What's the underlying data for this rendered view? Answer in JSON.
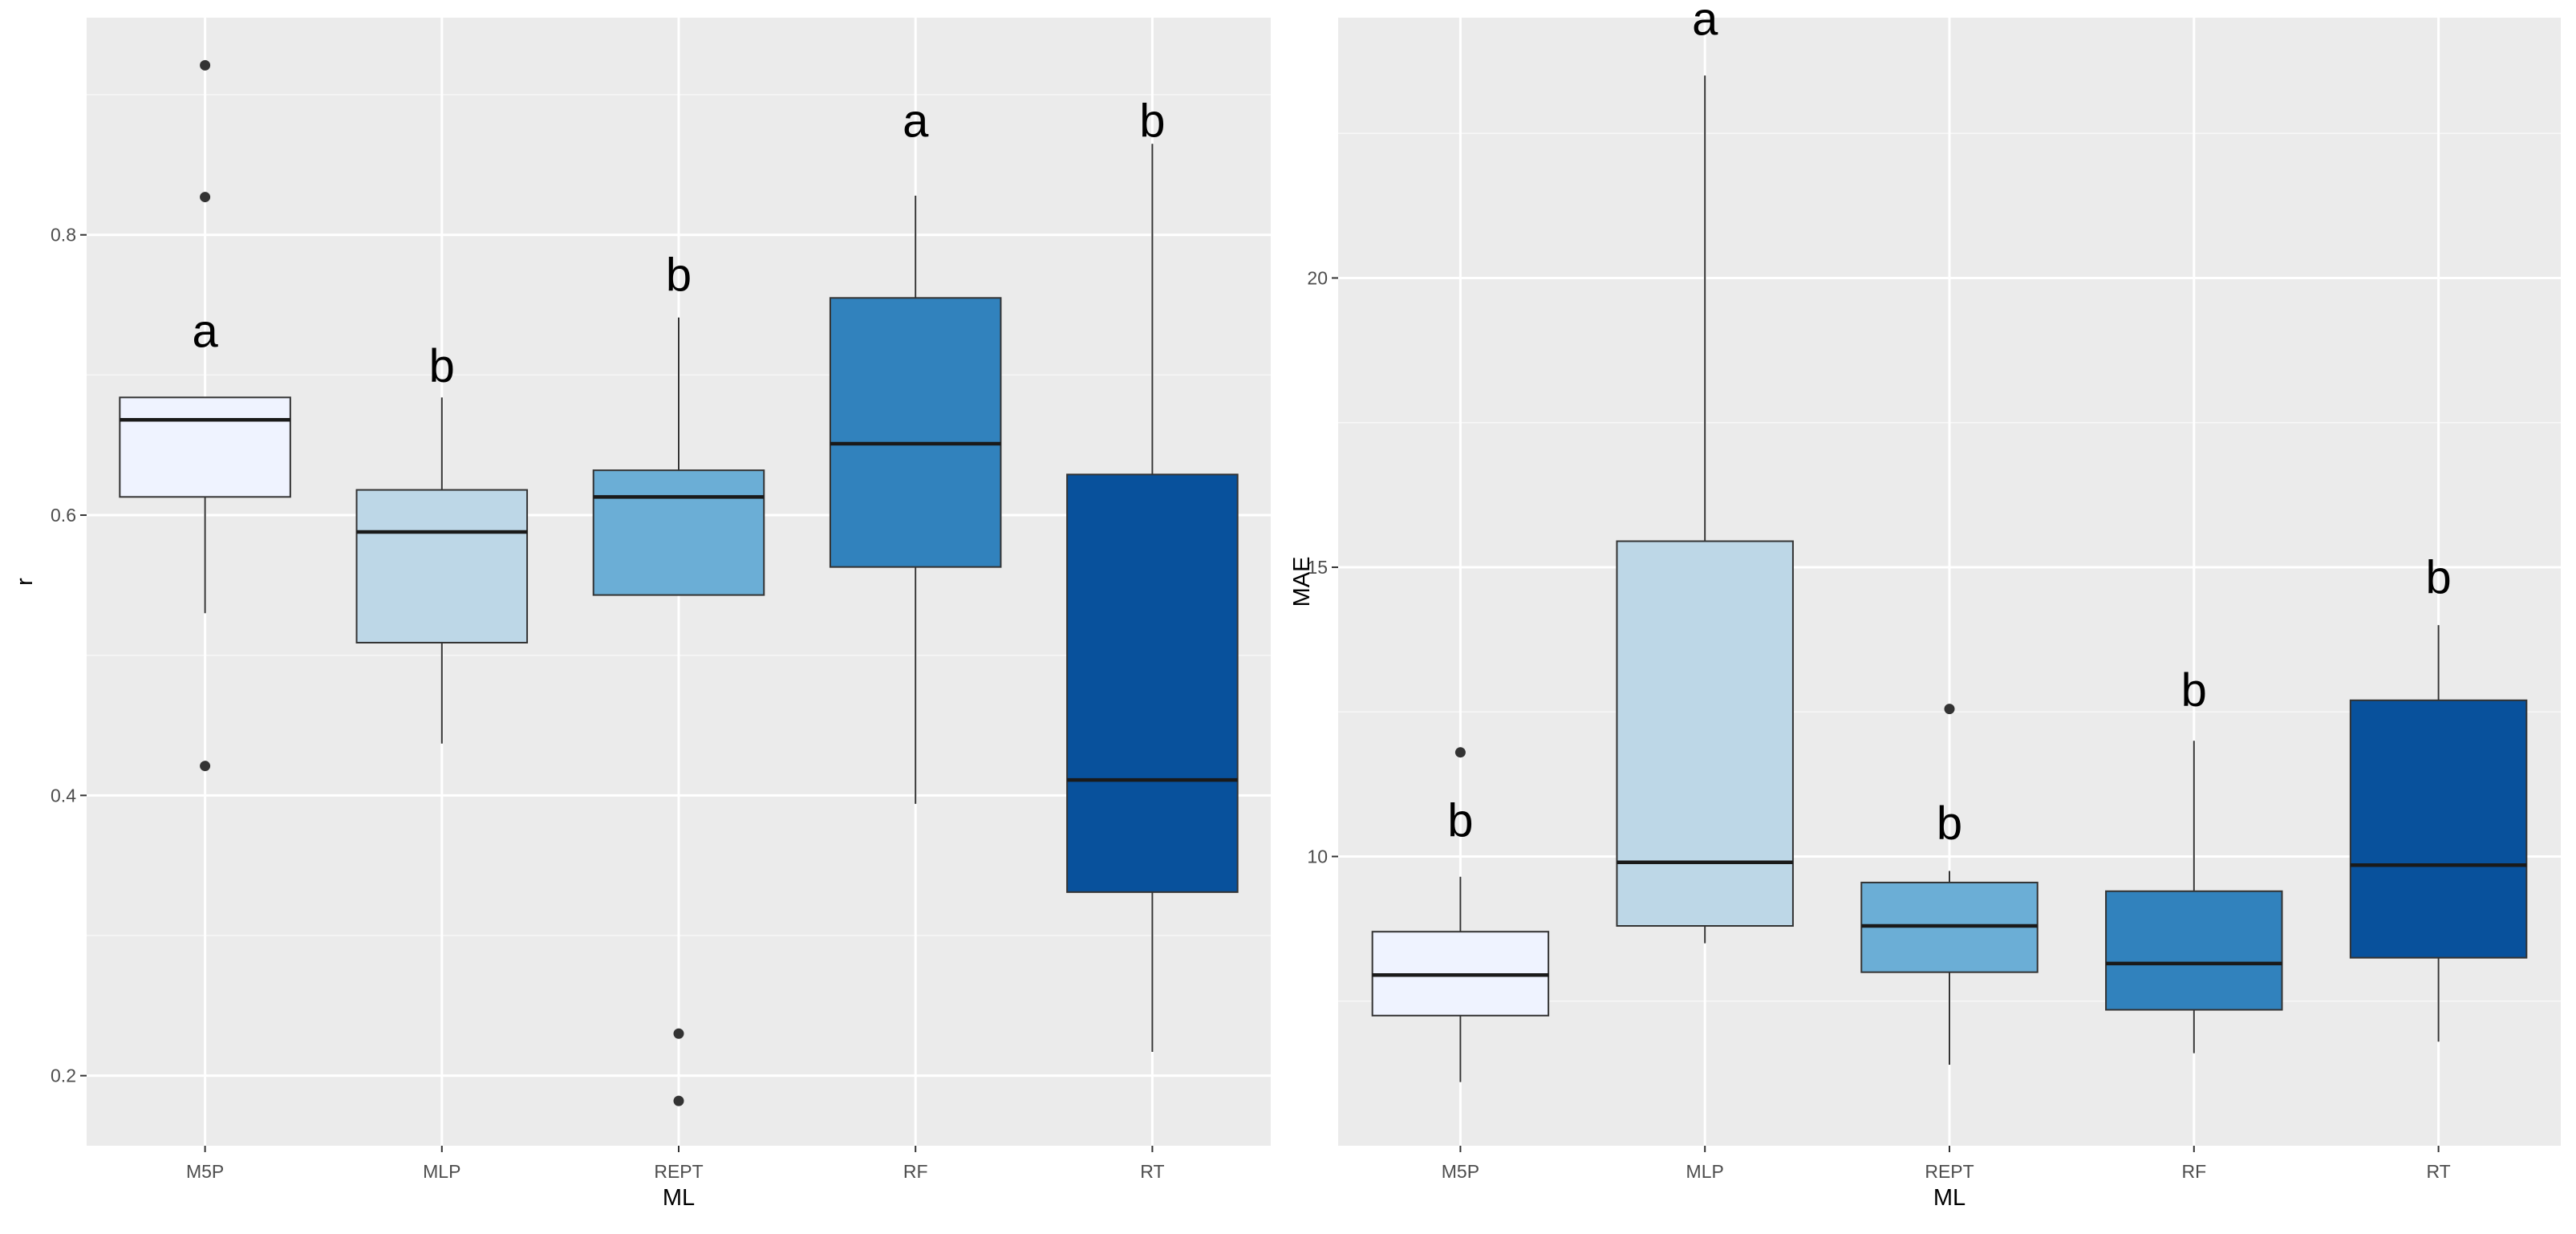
{
  "chart_data": [
    {
      "type": "box",
      "xlabel": "ML",
      "ylabel": "r",
      "ylim": [
        0.15,
        0.955
      ],
      "yticks": [
        "0.2",
        "0.4",
        "0.6",
        "0.8"
      ],
      "categories": [
        "M5P",
        "MLP",
        "REPT",
        "RF",
        "RT"
      ],
      "colors": [
        "#EFF3FF",
        "#BDD7E7",
        "#6BAED6",
        "#3182BD",
        "#08519C"
      ],
      "boxes": [
        {
          "category": "M5P",
          "whisker_low": 0.53,
          "q1": 0.613,
          "median": 0.668,
          "q3": 0.684,
          "whisker_high": 0.684,
          "outliers": [
            0.921,
            0.827,
            0.421
          ],
          "letter": "a",
          "letter_y": 0.72
        },
        {
          "category": "MLP",
          "whisker_low": 0.437,
          "q1": 0.509,
          "median": 0.588,
          "q3": 0.618,
          "whisker_high": 0.684,
          "outliers": [],
          "letter": "b",
          "letter_y": 0.695
        },
        {
          "category": "REPT",
          "whisker_low": 0.543,
          "q1": 0.543,
          "median": 0.613,
          "q3": 0.632,
          "whisker_high": 0.741,
          "outliers": [
            0.23,
            0.182
          ],
          "letter": "b",
          "letter_y": 0.76
        },
        {
          "category": "RF",
          "whisker_low": 0.394,
          "q1": 0.563,
          "median": 0.651,
          "q3": 0.755,
          "whisker_high": 0.828,
          "outliers": [],
          "letter": "a",
          "letter_y": 0.87
        },
        {
          "category": "RT",
          "whisker_low": 0.217,
          "q1": 0.331,
          "median": 0.411,
          "q3": 0.629,
          "whisker_high": 0.865,
          "outliers": [],
          "letter": "b",
          "letter_y": 0.87
        }
      ]
    },
    {
      "type": "box",
      "xlabel": "ML",
      "ylabel": "MAE",
      "ylim": [
        5.0,
        24.5
      ],
      "yticks": [
        "10",
        "15",
        "20"
      ],
      "categories": [
        "M5P",
        "MLP",
        "REPT",
        "RF",
        "RT"
      ],
      "colors": [
        "#EFF3FF",
        "#BDD7E7",
        "#6BAED6",
        "#3182BD",
        "#08519C"
      ],
      "boxes": [
        {
          "category": "M5P",
          "whisker_low": 6.1,
          "q1": 7.25,
          "median": 7.95,
          "q3": 8.7,
          "whisker_high": 9.65,
          "outliers": [
            11.8
          ],
          "letter": "b",
          "letter_y": 10.35
        },
        {
          "category": "MLP",
          "whisker_low": 8.5,
          "q1": 8.8,
          "median": 9.9,
          "q3": 15.45,
          "whisker_high": 23.5,
          "outliers": [],
          "letter": "a",
          "letter_y": 24.2
        },
        {
          "category": "REPT",
          "whisker_low": 6.4,
          "q1": 8.0,
          "median": 8.8,
          "q3": 9.55,
          "whisker_high": 9.75,
          "outliers": [
            12.55
          ],
          "letter": "b",
          "letter_y": 10.3
        },
        {
          "category": "RF",
          "whisker_low": 6.6,
          "q1": 7.35,
          "median": 8.15,
          "q3": 9.4,
          "whisker_high": 12.0,
          "outliers": [],
          "letter": "b",
          "letter_y": 12.6
        },
        {
          "category": "RT",
          "whisker_low": 6.8,
          "q1": 8.25,
          "median": 9.85,
          "q3": 12.7,
          "whisker_high": 14.0,
          "outliers": [],
          "letter": "b",
          "letter_y": 14.55
        }
      ]
    }
  ]
}
